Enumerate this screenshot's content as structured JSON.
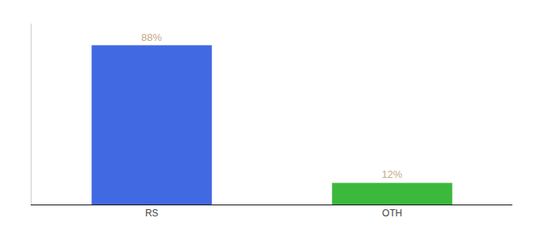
{
  "chart_data": {
    "type": "bar",
    "categories": [
      "RS",
      "OTH"
    ],
    "values": [
      88,
      12
    ],
    "value_labels": [
      "88%",
      "12%"
    ],
    "colors": [
      "#4169e1",
      "#3cb83c"
    ],
    "ylim": [
      0,
      100
    ],
    "yticks": [],
    "data_labels": true,
    "tick_labels": "x",
    "grid": false
  }
}
